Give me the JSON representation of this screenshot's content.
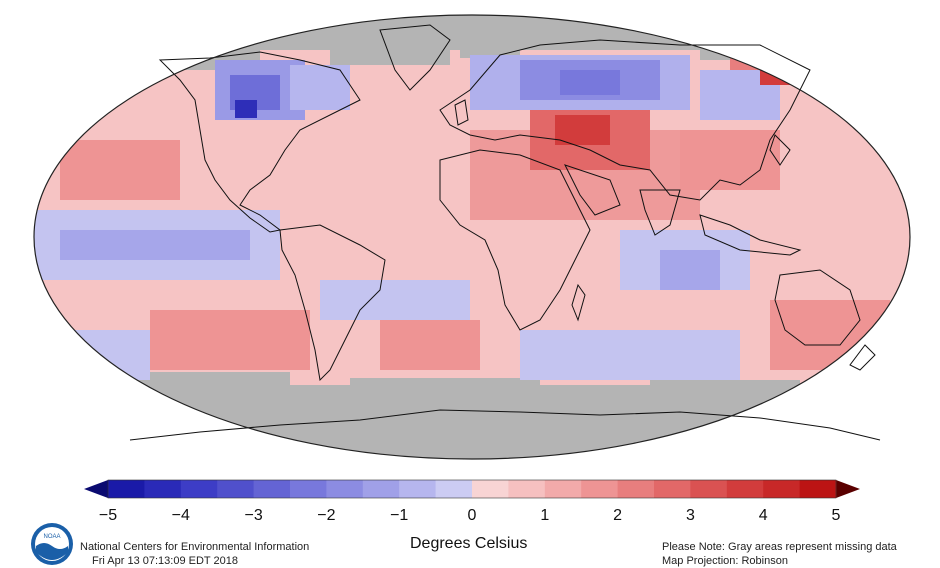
{
  "map": {
    "projection_name": "Robinson",
    "missing_color": "#b4b4b4"
  },
  "colorbar": {
    "ticks": [
      "−5",
      "−4",
      "−3",
      "−2",
      "−1",
      "0",
      "1",
      "2",
      "3",
      "4",
      "5"
    ],
    "colors": [
      "#1a1aa8",
      "#2a2ab8",
      "#3d3dc6",
      "#5050cc",
      "#6464d4",
      "#7878dc",
      "#8c8ce2",
      "#a0a0e8",
      "#b6b6ee",
      "#ccccf3",
      "#f8d4d4",
      "#f6c0c0",
      "#f2aaaa",
      "#ee9494",
      "#e87e7e",
      "#e26868",
      "#da5252",
      "#d23c3c",
      "#c82828",
      "#bc1414"
    ],
    "under_color": "#0a0a70",
    "over_color": "#5a0000"
  },
  "footer": {
    "org_line1": "National Centers for Environmental Information",
    "org_line2": "Fri Apr 13 07:13:09 EDT 2018",
    "units_label": "Degrees Celsius",
    "note_line1": "Please Note: Gray areas represent missing data",
    "note_line2": "Map Projection: Robinson",
    "logo_icon": "noaa-logo-icon",
    "logo_text": "NOAA"
  }
}
